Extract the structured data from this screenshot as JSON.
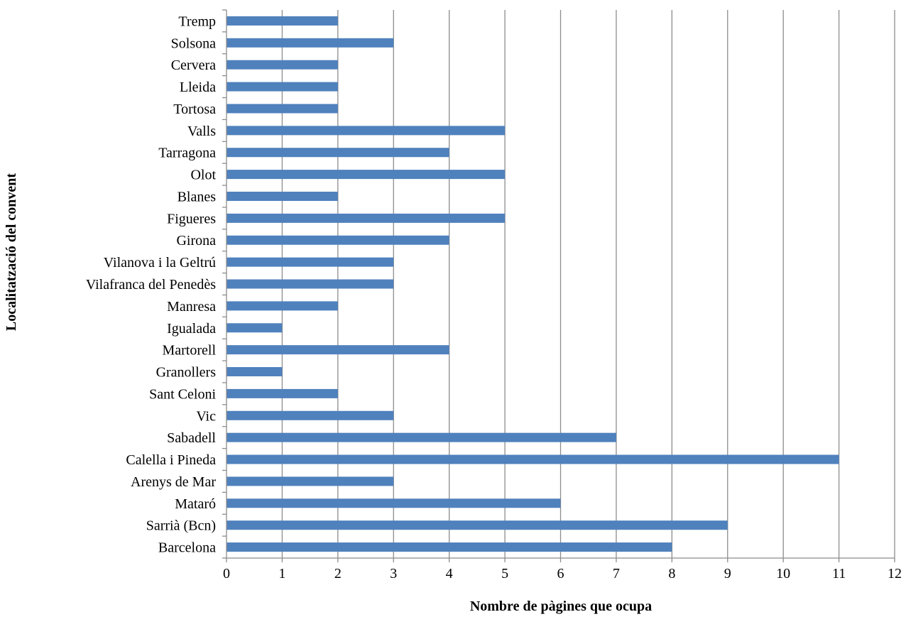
{
  "chart_data": {
    "type": "bar",
    "orientation": "horizontal",
    "xlabel": "Nombre de pàgines que ocupa",
    "ylabel": "Localitatzació del convent",
    "xlim": [
      0,
      12
    ],
    "xticks": [
      0,
      1,
      2,
      3,
      4,
      5,
      6,
      7,
      8,
      9,
      10,
      11,
      12
    ],
    "grid": "vertical",
    "bar_color": "#4F81BD",
    "categories": [
      "Tremp",
      "Solsona",
      "Cervera",
      "Lleida",
      "Tortosa",
      "Valls",
      "Tarragona",
      "Olot",
      "Blanes",
      "Figueres",
      "Girona",
      "Vilanova i la Geltrú",
      "Vilafranca del Penedès",
      "Manresa",
      "Igualada",
      "Martorell",
      "Granollers",
      "Sant Celoni",
      "Vic",
      "Sabadell",
      "Calella i Pineda",
      "Arenys de Mar",
      "Mataró",
      "Sarrià (Bcn)",
      "Barcelona"
    ],
    "values": [
      2,
      3,
      2,
      2,
      2,
      5,
      4,
      5,
      2,
      5,
      4,
      3,
      3,
      2,
      1,
      4,
      1,
      2,
      3,
      7,
      11,
      3,
      6,
      9,
      8
    ]
  }
}
